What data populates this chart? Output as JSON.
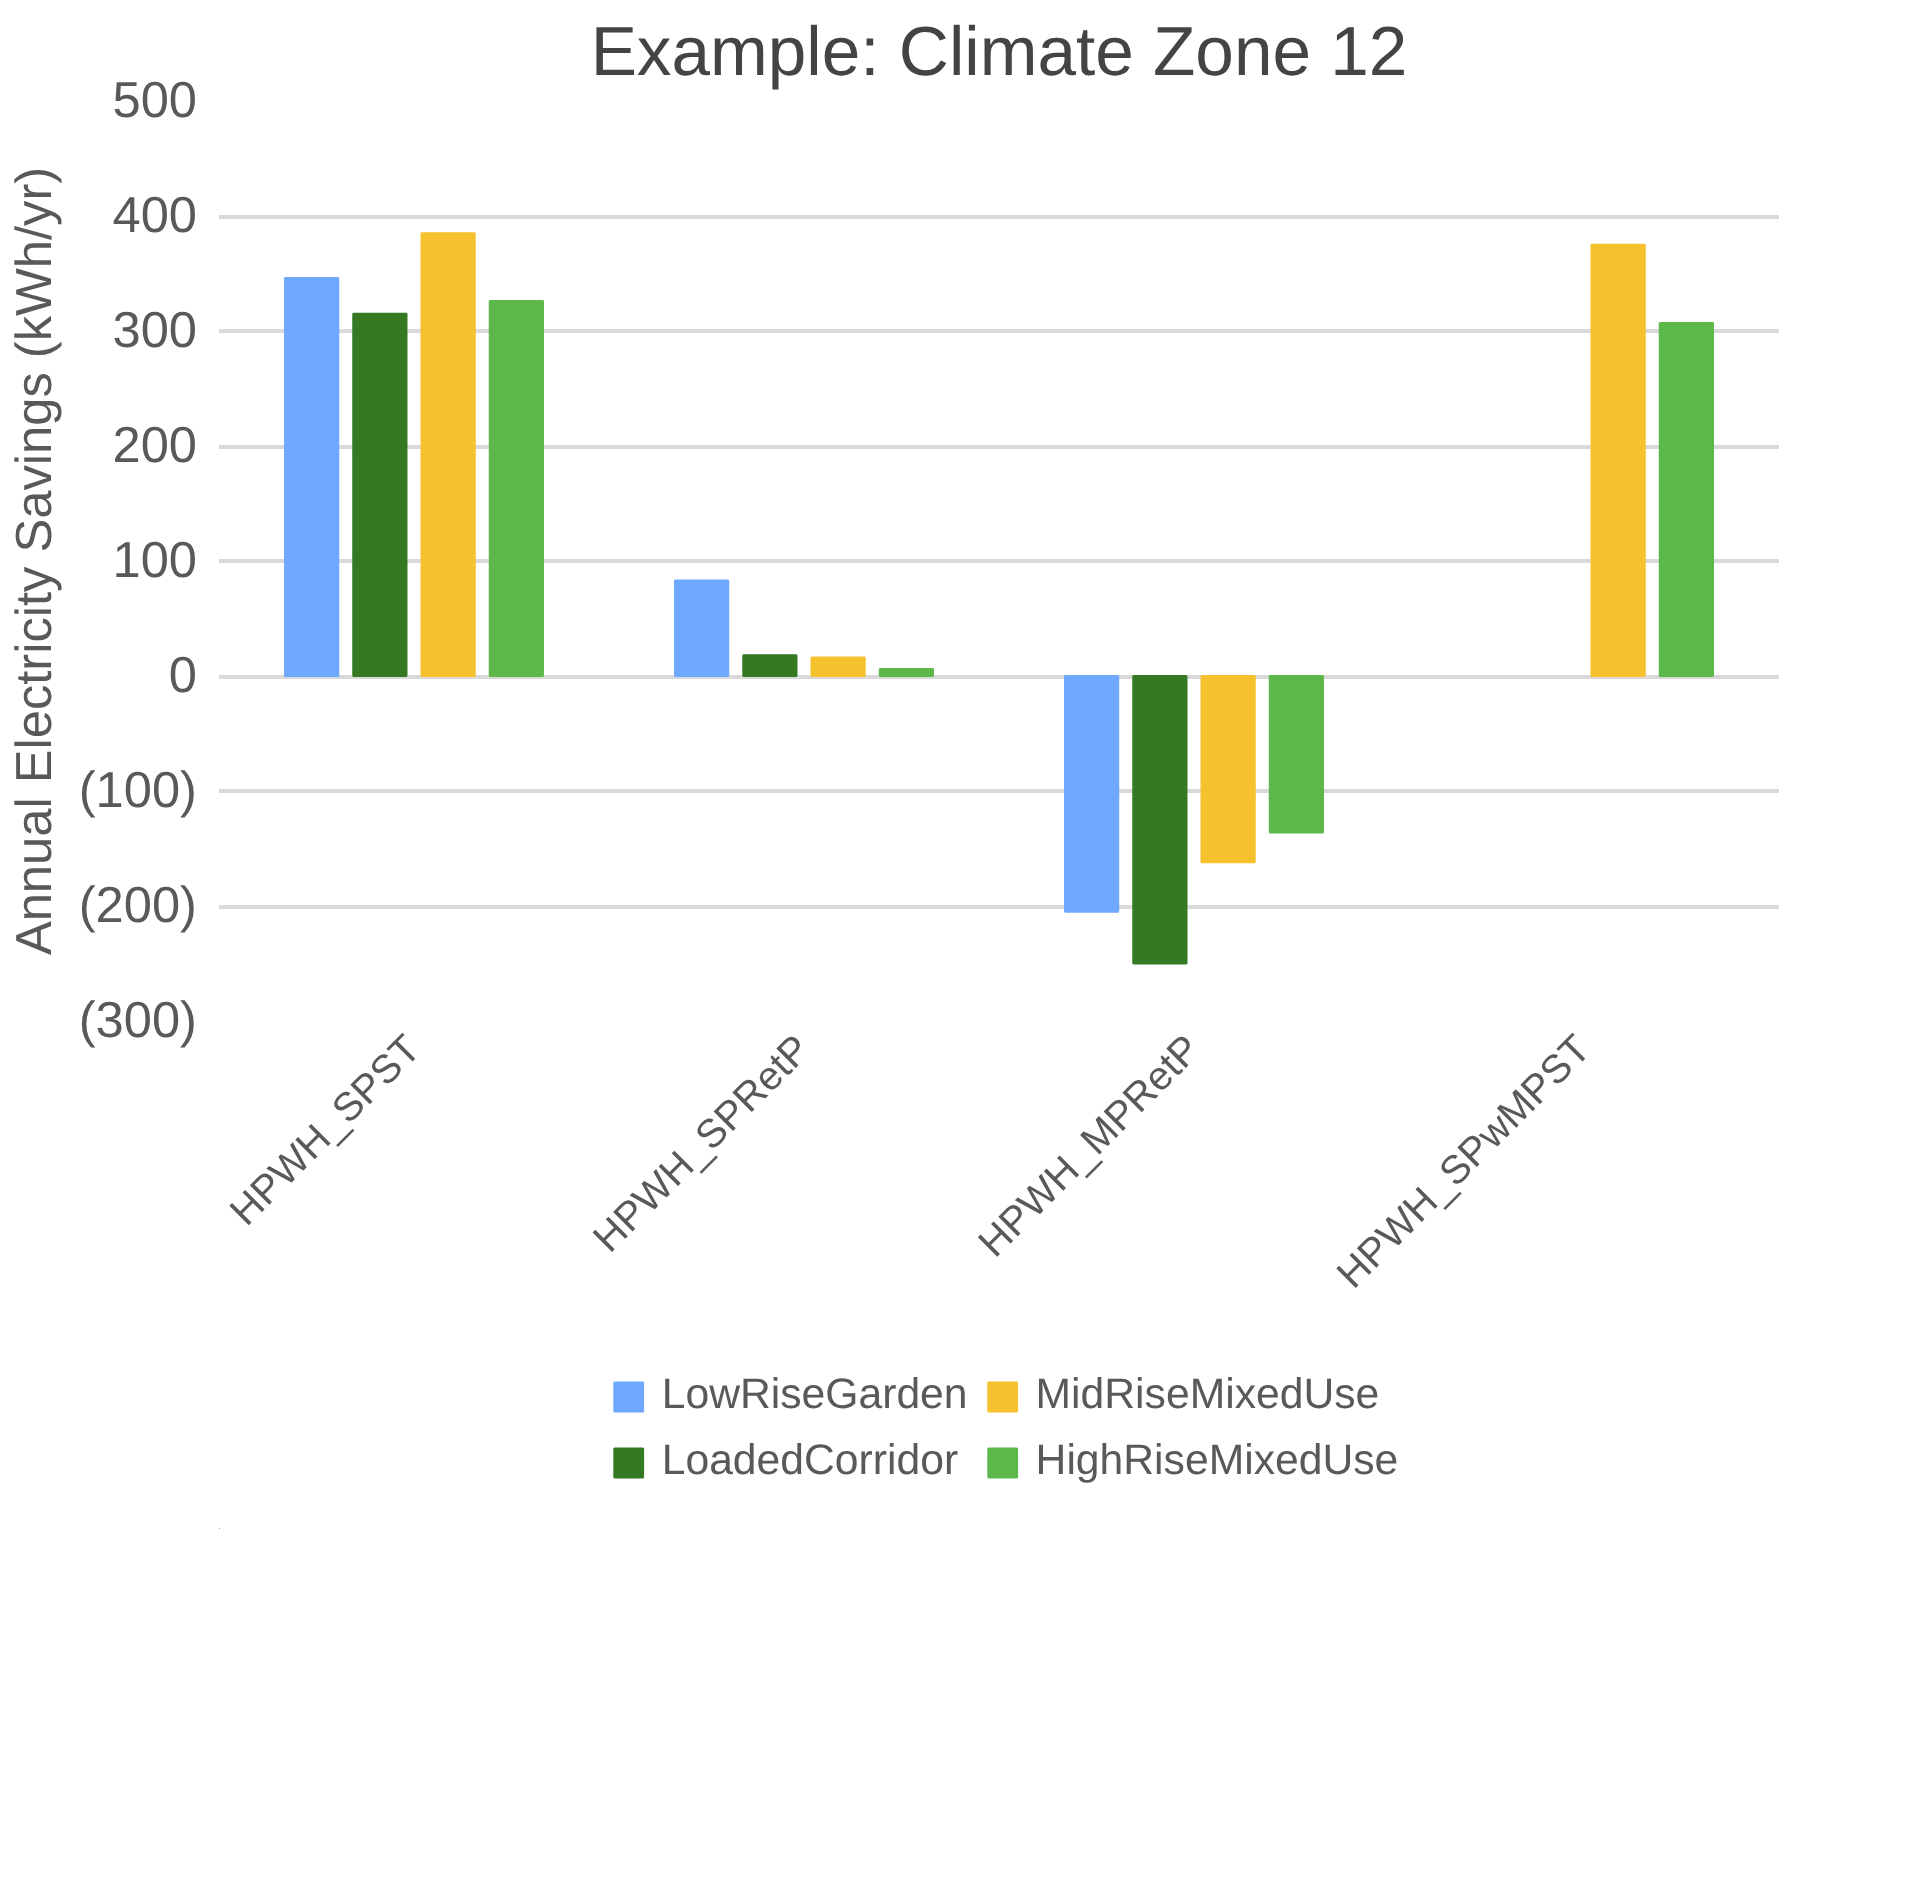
{
  "chart_data": {
    "type": "bar",
    "title": "Example: Climate Zone 12",
    "ylabel": "Annual Electricity Savings (kWh/yr)",
    "categories": [
      "HPWH_SPST",
      "HPWH_SPRetP",
      "HPWH_MPRetP",
      "HPWH_SPwMPST"
    ],
    "series": [
      {
        "name": "LowRiseGarden",
        "color": "#6fa8ff",
        "values": [
          346,
          83,
          -205,
          null
        ]
      },
      {
        "name": "LoadedCorridor",
        "color": "#357a23",
        "values": [
          315,
          18,
          -250,
          null
        ]
      },
      {
        "name": "MidRiseMixedUse",
        "color": "#f5c12e",
        "values": [
          385,
          16,
          -162,
          375
        ]
      },
      {
        "name": "HighRiseMixedUse",
        "color": "#5db84a",
        "values": [
          326,
          6,
          -136,
          307
        ]
      }
    ],
    "ylim": [
      -300,
      500
    ],
    "yticks": [
      {
        "value": -300,
        "label": "(300)"
      },
      {
        "value": -200,
        "label": "(200)"
      },
      {
        "value": -100,
        "label": "(100)"
      },
      0,
      100,
      200,
      300,
      400,
      500
    ],
    "grid": "y",
    "legend": "bottom"
  }
}
